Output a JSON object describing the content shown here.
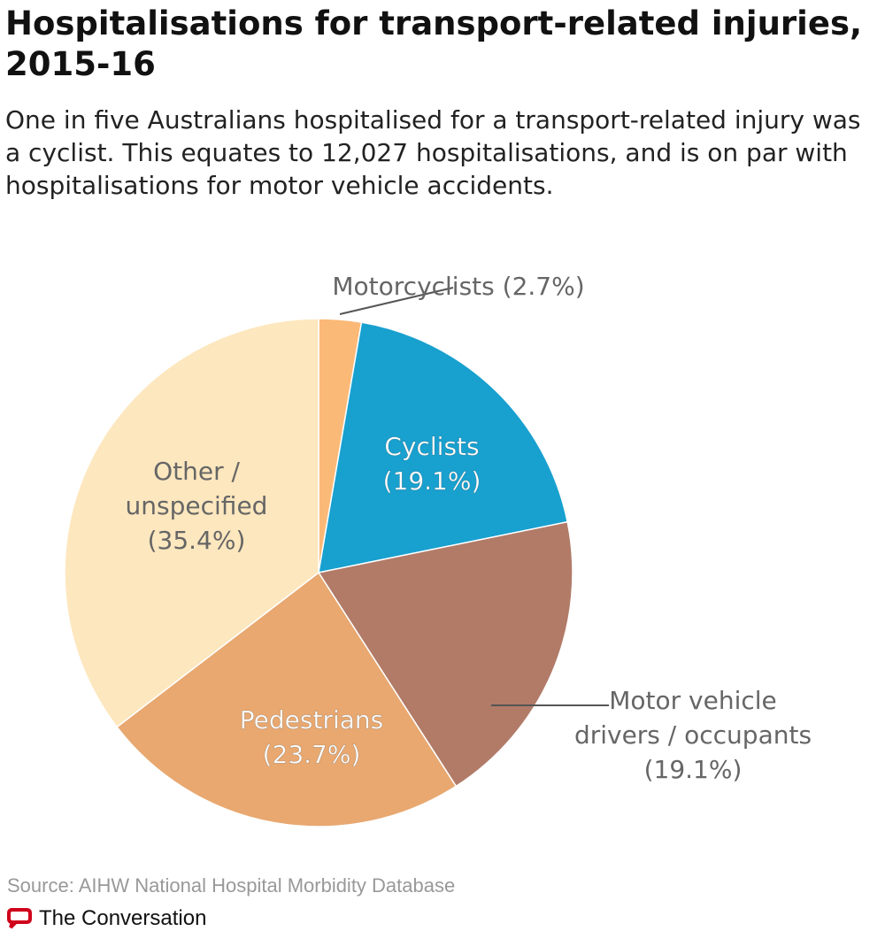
{
  "title": "Hospitalisations for transport-related injuries, 2015-16",
  "subtitle": "One in five Australians hospitalised for a transport-related injury was a cyclist. This equates to 12,027 hospitalisations, and is on par with hospitalisations for motor vehicle accidents.",
  "source": "Source: AIHW National Hospital Morbidity Database",
  "brand": "The Conversation",
  "chart_data": {
    "type": "pie",
    "start": "top, clockwise",
    "slices": [
      {
        "name": "Motorcyclists",
        "value": 2.7,
        "label_lines": [
          "Motorcyclists (2.7%)"
        ],
        "color": "#fbb977",
        "label_color": "#666666"
      },
      {
        "name": "Cyclists",
        "value": 19.1,
        "label_lines": [
          "Cyclists",
          "(19.1%)"
        ],
        "color": "#18a0cf",
        "label_color": "#ffffff"
      },
      {
        "name": "Motor vehicle drivers / occupants",
        "value": 19.1,
        "label_lines": [
          "Motor vehicle",
          "drivers / occupants",
          "(19.1%)"
        ],
        "color": "#b17b68",
        "label_color": "#666666"
      },
      {
        "name": "Pedestrians",
        "value": 23.7,
        "label_lines": [
          "Pedestrians",
          "(23.7%)"
        ],
        "color": "#e8a870",
        "label_color": "#ffffff"
      },
      {
        "name": "Other / unspecified",
        "value": 35.4,
        "label_lines": [
          "Other /",
          "unspecified",
          "(35.4%)"
        ],
        "color": "#fde7be",
        "label_color": "#666666"
      }
    ]
  }
}
